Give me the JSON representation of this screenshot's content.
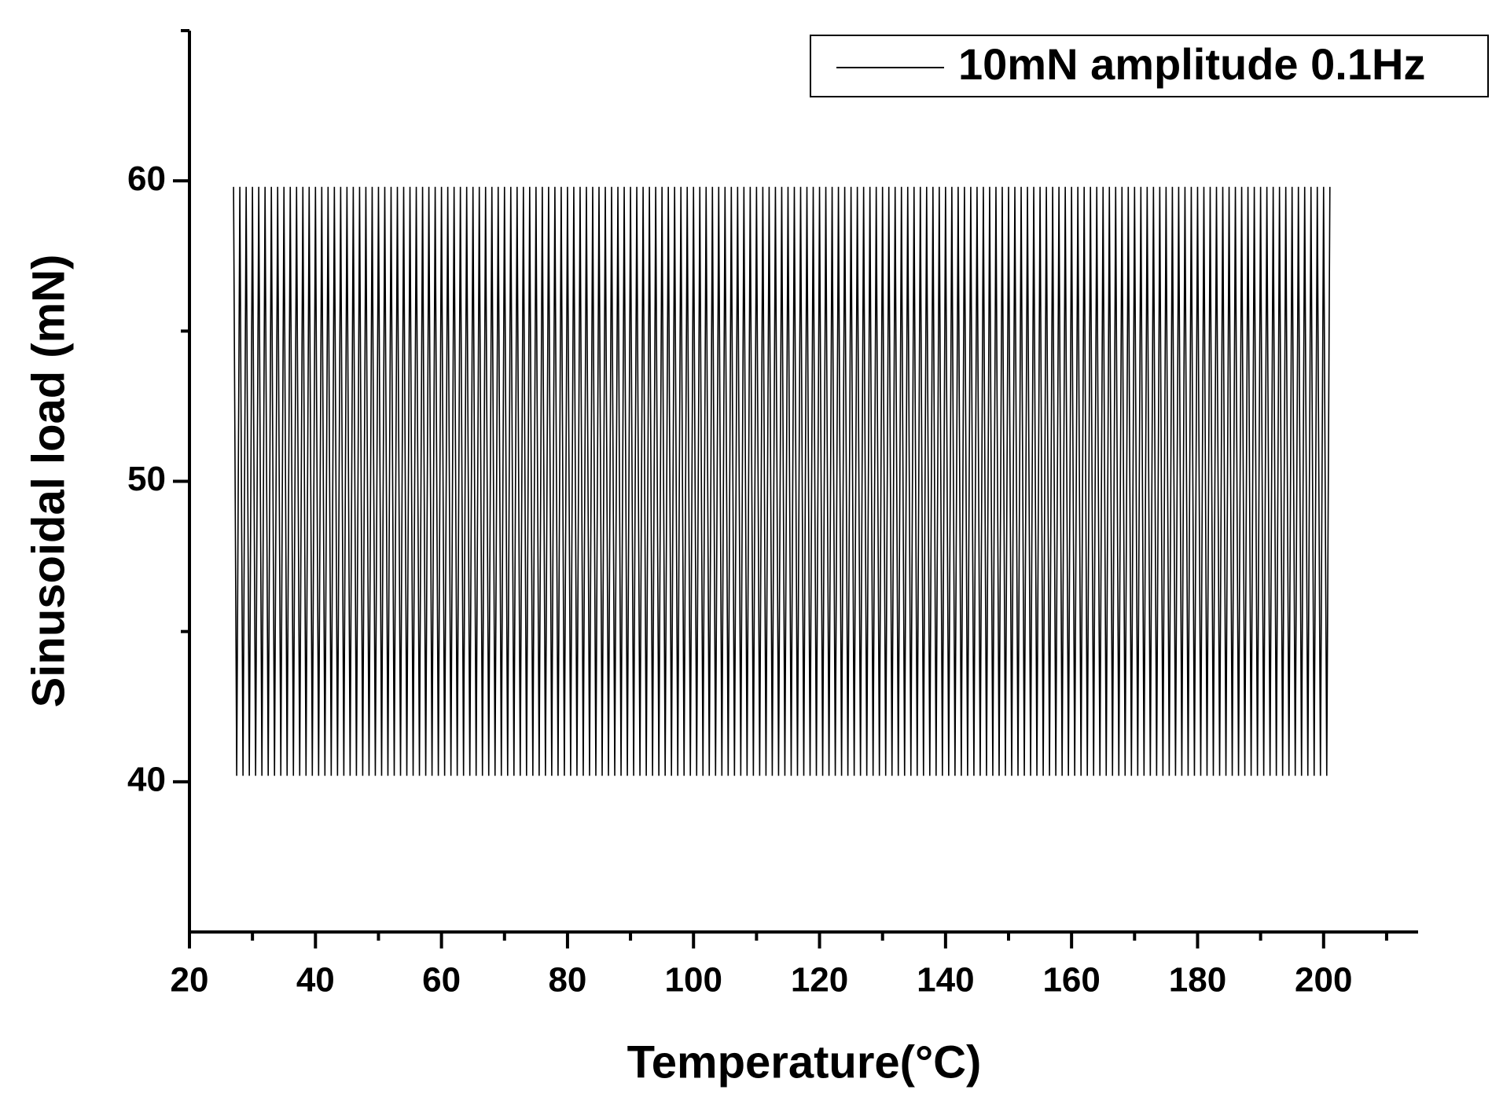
{
  "chart_data": {
    "type": "line",
    "x": [
      27,
      27.5,
      28,
      28.5,
      29,
      29.5,
      30,
      30.5,
      31,
      31.5,
      32,
      32.5,
      33,
      33.5,
      34,
      34.5,
      35,
      35.5,
      36,
      36.5,
      37,
      37.5,
      38,
      38.5,
      39,
      39.5,
      40,
      40.5,
      41,
      41.5,
      42,
      42.5,
      43,
      43.5,
      44,
      44.5,
      45,
      45.5,
      46,
      46.5,
      47,
      47.5,
      48,
      48.5,
      49,
      49.5,
      50,
      50.5,
      51,
      51.5,
      52,
      52.5,
      53,
      53.5,
      54,
      54.5,
      55,
      55.5,
      56,
      56.5,
      57,
      57.5,
      58,
      58.5,
      59,
      59.5,
      60,
      60.5,
      61,
      61.5,
      62,
      62.5,
      63,
      63.5,
      64,
      64.5,
      65,
      65.5,
      66,
      66.5,
      67,
      67.5,
      68,
      68.5,
      69,
      69.5,
      70,
      70.5,
      71,
      71.5,
      72,
      72.5,
      73,
      73.5,
      74,
      74.5,
      75,
      75.5,
      76,
      76.5,
      77,
      77.5,
      78,
      78.5,
      79,
      79.5,
      80,
      80.5,
      81,
      81.5,
      82,
      82.5,
      83,
      83.5,
      84,
      84.5,
      85,
      85.5,
      86,
      86.5,
      87,
      87.5,
      88,
      88.5,
      89,
      89.5,
      90,
      90.5,
      91,
      91.5,
      92,
      92.5,
      93,
      93.5,
      94,
      94.5,
      95,
      95.5,
      96,
      96.5,
      97,
      97.5,
      98,
      98.5,
      99,
      99.5,
      100,
      100.5,
      101,
      101.5,
      102,
      102.5,
      103,
      103.5,
      104,
      104.5,
      105,
      105.5,
      106,
      106.5,
      107,
      107.5,
      108,
      108.5,
      109,
      109.5,
      110,
      110.5,
      111,
      111.5,
      112,
      112.5,
      113,
      113.5,
      114,
      114.5,
      115,
      115.5,
      116,
      116.5,
      117,
      117.5,
      118,
      118.5,
      119,
      119.5,
      120,
      120.5,
      121,
      121.5,
      122,
      122.5,
      123,
      123.5,
      124,
      124.5,
      125,
      125.5,
      126,
      126.5,
      127,
      127.5,
      128,
      128.5,
      129,
      129.5,
      130,
      130.5,
      131,
      131.5,
      132,
      132.5,
      133,
      133.5,
      134,
      134.5,
      135,
      135.5,
      136,
      136.5,
      137,
      137.5,
      138,
      138.5,
      139,
      139.5,
      140,
      140.5,
      141,
      141.5,
      142,
      142.5,
      143,
      143.5,
      144,
      144.5,
      145,
      145.5,
      146,
      146.5,
      147,
      147.5,
      148,
      148.5,
      149,
      149.5,
      150,
      150.5,
      151,
      151.5,
      152,
      152.5,
      153,
      153.5,
      154,
      154.5,
      155,
      155.5,
      156,
      156.5,
      157,
      157.5,
      158,
      158.5,
      159,
      159.5,
      160,
      160.5,
      161,
      161.5,
      162,
      162.5,
      163,
      163.5,
      164,
      164.5,
      165,
      165.5,
      166,
      166.5,
      167,
      167.5,
      168,
      168.5,
      169,
      169.5,
      170,
      170.5,
      171,
      171.5,
      172,
      172.5,
      173,
      173.5,
      174,
      174.5,
      175,
      175.5,
      176,
      176.5,
      177,
      177.5,
      178,
      178.5,
      179,
      179.5,
      180,
      180.5,
      181,
      181.5,
      182,
      182.5,
      183,
      183.5,
      184,
      184.5,
      185,
      185.5,
      186,
      186.5,
      187,
      187.5,
      188,
      188.5,
      189,
      189.5,
      190,
      190.5,
      191,
      191.5,
      192,
      192.5,
      193,
      193.5,
      194,
      194.5,
      195,
      195.5,
      196,
      196.5,
      197,
      197.5,
      198,
      198.5,
      199,
      199.5,
      200,
      200.5,
      201
    ],
    "series": [
      {
        "name": "10mN amplitude 0.1Hz",
        "color": "#000000",
        "values": [
          59.8,
          40.2,
          59.8,
          40.2,
          59.8,
          40.2,
          59.8,
          40.2,
          59.8,
          40.2,
          59.8,
          40.2,
          59.8,
          40.2,
          59.8,
          40.2,
          59.8,
          40.2,
          59.8,
          40.2,
          59.8,
          40.2,
          59.8,
          40.2,
          59.8,
          40.2,
          59.8,
          40.2,
          59.8,
          40.2,
          59.8,
          40.2,
          59.8,
          40.2,
          59.8,
          40.2,
          59.8,
          40.2,
          59.8,
          40.2,
          59.8,
          40.2,
          59.8,
          40.2,
          59.8,
          40.2,
          59.8,
          40.2,
          59.8,
          40.2,
          59.8,
          40.2,
          59.8,
          40.2,
          59.8,
          40.2,
          59.8,
          40.2,
          59.8,
          40.2,
          59.8,
          40.2,
          59.8,
          40.2,
          59.8,
          40.2,
          59.8,
          40.2,
          59.8,
          40.2,
          59.8,
          40.2,
          59.8,
          40.2,
          59.8,
          40.2,
          59.8,
          40.2,
          59.8,
          40.2,
          59.8,
          40.2,
          59.8,
          40.2,
          59.8,
          40.2,
          59.8,
          40.2,
          59.8,
          40.2,
          59.8,
          40.2,
          59.8,
          40.2,
          59.8,
          40.2,
          59.8,
          40.2,
          59.8,
          40.2,
          59.8,
          40.2,
          59.8,
          40.2,
          59.8,
          40.2,
          59.8,
          40.2,
          59.8,
          40.2,
          59.8,
          40.2,
          59.8,
          40.2,
          59.8,
          40.2,
          59.8,
          40.2,
          59.8,
          40.2,
          59.8,
          40.2,
          59.8,
          40.2,
          59.8,
          40.2,
          59.8,
          40.2,
          59.8,
          40.2,
          59.8,
          40.2,
          59.8,
          40.2,
          59.8,
          40.2,
          59.8,
          40.2,
          59.8,
          40.2,
          59.8,
          40.2,
          59.8,
          40.2,
          59.8,
          40.2,
          59.8,
          40.2,
          59.8,
          40.2,
          59.8,
          40.2,
          59.8,
          40.2,
          59.8,
          40.2,
          59.8,
          40.2,
          59.8,
          40.2,
          59.8,
          40.2,
          59.8,
          40.2,
          59.8,
          40.2,
          59.8,
          40.2,
          59.8,
          40.2,
          59.8,
          40.2,
          59.8,
          40.2,
          59.8,
          40.2,
          59.8,
          40.2,
          59.8,
          40.2,
          59.8,
          40.2,
          59.8,
          40.2,
          59.8,
          40.2,
          59.8,
          40.2,
          59.8,
          40.2,
          59.8,
          40.2,
          59.8,
          40.2,
          59.8,
          40.2,
          59.8,
          40.2,
          59.8,
          40.2,
          59.8,
          40.2,
          59.8,
          40.2,
          59.8,
          40.2,
          59.8,
          40.2,
          59.8,
          40.2,
          59.8,
          40.2,
          59.8,
          40.2,
          59.8,
          40.2,
          59.8,
          40.2,
          59.8,
          40.2,
          59.8,
          40.2,
          59.8,
          40.2,
          59.8,
          40.2,
          59.8,
          40.2,
          59.8,
          40.2,
          59.8,
          40.2,
          59.8,
          40.2,
          59.8,
          40.2,
          59.8,
          40.2,
          59.8,
          40.2,
          59.8,
          40.2,
          59.8,
          40.2,
          59.8,
          40.2,
          59.8,
          40.2,
          59.8,
          40.2,
          59.8,
          40.2,
          59.8,
          40.2,
          59.8,
          40.2,
          59.8,
          40.2,
          59.8,
          40.2,
          59.8,
          40.2,
          59.8,
          40.2,
          59.8,
          40.2,
          59.8,
          40.2,
          59.8,
          40.2,
          59.8,
          40.2,
          59.8,
          40.2,
          59.8,
          40.2,
          59.8,
          40.2,
          59.8,
          40.2,
          59.8,
          40.2,
          59.8,
          40.2,
          59.8,
          40.2,
          59.8,
          40.2,
          59.8,
          40.2,
          59.8,
          40.2,
          59.8,
          40.2,
          59.8,
          40.2,
          59.8,
          40.2,
          59.8,
          40.2,
          59.8,
          40.2,
          59.8,
          40.2,
          59.8,
          40.2,
          59.8,
          40.2,
          59.8,
          40.2,
          59.8,
          40.2,
          59.8,
          40.2,
          59.8,
          40.2,
          59.8,
          40.2,
          59.8,
          40.2,
          59.8,
          40.2,
          59.8,
          40.2,
          59.8,
          40.2,
          59.8,
          40.2,
          59.8,
          40.2,
          59.8,
          40.2,
          59.8,
          40.2,
          59.8,
          40.2,
          59.8,
          40.2,
          59.8,
          40.2,
          59.8,
          40.2,
          59.8,
          40.2,
          59.8,
          40.2,
          59.8,
          40.2,
          59.8
        ]
      }
    ],
    "xlabel": "Temperature(°C)",
    "ylabel": "Sinusoidal load (mN)",
    "xlim": [
      20,
      215
    ],
    "ylim": [
      35,
      65
    ],
    "xticks": [
      20,
      40,
      60,
      80,
      100,
      120,
      140,
      160,
      180,
      200
    ],
    "yticks": [
      40,
      50,
      60
    ],
    "xminorticks": [
      30,
      50,
      70,
      90,
      110,
      130,
      150,
      170,
      190,
      210
    ],
    "yminorticks": [
      45,
      55,
      65
    ],
    "legend": "upper right"
  }
}
